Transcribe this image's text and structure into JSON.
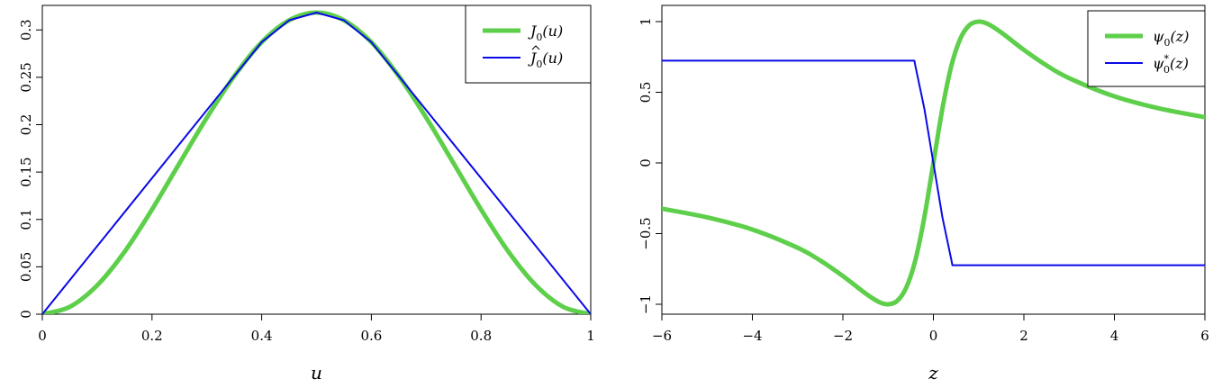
{
  "colors": {
    "green": "#5ecf4b",
    "blue": "#0a0ae6"
  },
  "chart_data": [
    {
      "type": "line",
      "xlabel": "u",
      "ylabel": "",
      "xlim": [
        0,
        1
      ],
      "ylim": [
        0,
        0.3183
      ],
      "xticks": [
        "0",
        "0.2",
        "0.4",
        "0.6",
        "0.8",
        "1"
      ],
      "yticks": [
        "0",
        "0.05",
        "0.1",
        "0.15",
        "0.2",
        "0.25",
        "0.3"
      ],
      "legend_position": "top-right",
      "grid": false,
      "series": [
        {
          "name": "J0(u)",
          "legend_main": "J",
          "legend_sub": "0",
          "legend_tail": "(u)",
          "hat": false,
          "color": "#5ecf4b",
          "x": [
            0,
            0.05,
            0.1,
            0.15,
            0.2,
            0.25,
            0.3,
            0.35,
            0.4,
            0.45,
            0.5,
            0.55,
            0.6,
            0.65,
            0.7,
            0.75,
            0.8,
            0.85,
            0.9,
            0.95,
            1
          ],
          "y": [
            0,
            0.0077,
            0.0304,
            0.0659,
            0.1105,
            0.1592,
            0.2074,
            0.2513,
            0.2871,
            0.3102,
            0.3183,
            0.3102,
            0.2871,
            0.2513,
            0.2074,
            0.1592,
            0.1105,
            0.0659,
            0.0304,
            0.0077,
            0
          ]
        },
        {
          "name": "Ĵ0(u)",
          "legend_main": "J",
          "legend_sub": "0",
          "legend_tail": "(u)",
          "hat": true,
          "color": "#0a0ae6",
          "x": [
            0,
            0.35,
            0.4,
            0.45,
            0.5,
            0.55,
            0.6,
            0.65,
            1
          ],
          "y": [
            0,
            0.2513,
            0.2871,
            0.3102,
            0.3183,
            0.3102,
            0.2871,
            0.2513,
            0
          ]
        }
      ]
    },
    {
      "type": "line",
      "xlabel": "z",
      "ylabel": "",
      "xlim": [
        -6,
        6
      ],
      "ylim": [
        -1,
        1
      ],
      "xticks": [
        "−6",
        "−4",
        "−2",
        "0",
        "2",
        "4",
        "6"
      ],
      "yticks": [
        "−1",
        "−0.5",
        "0",
        "0.5",
        "1"
      ],
      "legend_position": "top-right",
      "grid": false,
      "series": [
        {
          "name": "ψ0(z)",
          "legend_main": "ψ",
          "legend_sub": "0",
          "legend_sup": "",
          "legend_tail": "(z)",
          "color": "#5ecf4b",
          "x": [
            -6,
            -5,
            -4,
            -3,
            -2.5,
            -2,
            -1.5,
            -1.2,
            -1,
            -0.8,
            -0.6,
            -0.4,
            -0.2,
            0,
            0.2,
            0.4,
            0.6,
            0.8,
            1,
            1.2,
            1.5,
            2,
            2.5,
            3,
            4,
            5,
            6
          ],
          "y": [
            -0.324,
            -0.385,
            -0.471,
            -0.6,
            -0.69,
            -0.8,
            -0.923,
            -0.984,
            -1,
            -0.976,
            -0.882,
            -0.69,
            -0.385,
            0,
            0.385,
            0.69,
            0.882,
            0.976,
            1,
            0.984,
            0.923,
            0.8,
            0.69,
            0.6,
            0.471,
            0.385,
            0.324
          ]
        },
        {
          "name": "ψ0*(z)",
          "legend_main": "ψ",
          "legend_sub": "0",
          "legend_sup": "*",
          "legend_tail": "(z)",
          "color": "#0a0ae6",
          "x": [
            -6,
            -0.42,
            -0.4,
            -0.2,
            0,
            0.2,
            0.4,
            0.42,
            6
          ],
          "y": [
            0.724,
            0.724,
            0.69,
            0.385,
            0,
            -0.385,
            -0.69,
            -0.724,
            -0.724
          ]
        }
      ]
    }
  ]
}
